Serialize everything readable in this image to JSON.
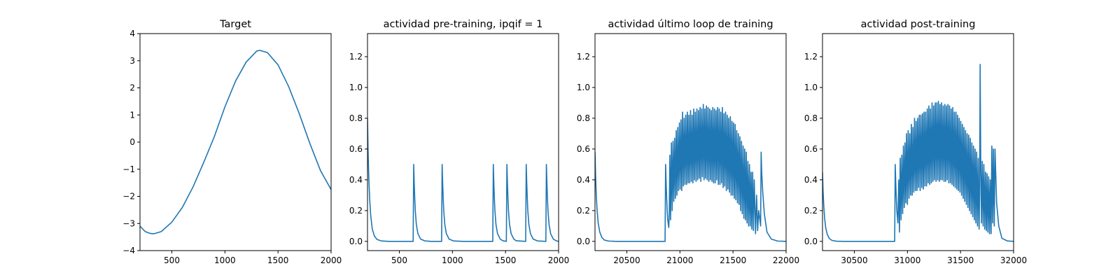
{
  "chart_data": [
    {
      "type": "line",
      "title": "Target",
      "xlabel": "",
      "ylabel": "",
      "xlim": [
        200,
        2000
      ],
      "ylim": [
        -4,
        4
      ],
      "xticks": [
        500,
        1000,
        1500,
        2000
      ],
      "xtick_labels": [
        "500",
        "1000",
        "1500",
        "2000"
      ],
      "yticks": [
        -4,
        -3,
        -2,
        -1,
        0,
        1,
        2,
        3,
        4
      ],
      "ytick_labels": [
        "−4",
        "−3",
        "−2",
        "−1",
        "0",
        "1",
        "2",
        "3",
        "4"
      ],
      "grid": false,
      "color": "#1f77b4",
      "series": [
        {
          "x": [
            200,
            250,
            300,
            330,
            400,
            500,
            600,
            700,
            800,
            900,
            1000,
            1100,
            1200,
            1300,
            1330,
            1400,
            1500,
            1600,
            1700,
            1800,
            1900,
            2000
          ],
          "y": [
            -3.1,
            -3.3,
            -3.37,
            -3.38,
            -3.3,
            -2.95,
            -2.4,
            -1.65,
            -0.75,
            0.2,
            1.3,
            2.25,
            2.95,
            3.36,
            3.38,
            3.3,
            2.85,
            2.05,
            1.05,
            -0.05,
            -1.05,
            -1.75
          ]
        }
      ]
    },
    {
      "type": "line",
      "title": "actividad pre-training, ipqif = 1",
      "xlabel": "",
      "ylabel": "",
      "xlim": [
        200,
        2000
      ],
      "ylim": [
        -0.06,
        1.35
      ],
      "xticks": [
        500,
        1000,
        1500,
        2000
      ],
      "xtick_labels": [
        "500",
        "1000",
        "1500",
        "2000"
      ],
      "yticks": [
        0.0,
        0.2,
        0.4,
        0.6,
        0.8,
        1.0,
        1.2
      ],
      "ytick_labels": [
        "0.0",
        "0.2",
        "0.4",
        "0.6",
        "0.8",
        "1.0",
        "1.2"
      ],
      "grid": false,
      "color": "#1f77b4",
      "series": [
        {
          "x": [
            200,
            205,
            212,
            220,
            230,
            245,
            265,
            290,
            330,
            400,
            500,
            630,
            635,
            640,
            645,
            650,
            660,
            675,
            700,
            740,
            800,
            898,
            903,
            908,
            913,
            918,
            928,
            943,
            968,
            1008,
            1100,
            1200,
            1380,
            1385,
            1390,
            1395,
            1400,
            1410,
            1425,
            1450,
            1475,
            1508,
            1513,
            1518,
            1523,
            1528,
            1538,
            1553,
            1578,
            1600,
            1690,
            1695,
            1700,
            1705,
            1710,
            1720,
            1735,
            1760,
            1800,
            1880,
            1885,
            1890,
            1895,
            1900,
            1910,
            1925,
            1950,
            1980,
            2000
          ],
          "y": [
            0.8,
            0.6,
            0.42,
            0.28,
            0.17,
            0.08,
            0.035,
            0.012,
            0.003,
            0.0,
            0.0,
            0.0,
            0.5,
            0.38,
            0.28,
            0.2,
            0.11,
            0.05,
            0.015,
            0.003,
            0.0,
            0.0,
            0.5,
            0.38,
            0.28,
            0.2,
            0.11,
            0.05,
            0.015,
            0.003,
            0.0,
            0.0,
            0.0,
            0.5,
            0.38,
            0.28,
            0.2,
            0.11,
            0.05,
            0.015,
            0.004,
            0.0,
            0.5,
            0.38,
            0.28,
            0.2,
            0.11,
            0.05,
            0.015,
            0.004,
            0.0,
            0.5,
            0.38,
            0.28,
            0.2,
            0.11,
            0.05,
            0.015,
            0.003,
            0.0,
            0.5,
            0.38,
            0.28,
            0.2,
            0.11,
            0.05,
            0.015,
            0.003,
            0.0
          ]
        }
      ]
    },
    {
      "type": "line",
      "title": "actividad último loop de training",
      "xlabel": "",
      "ylabel": "",
      "xlim": [
        20200,
        22000
      ],
      "ylim": [
        -0.06,
        1.35
      ],
      "xticks": [
        20500,
        21000,
        21500,
        22000
      ],
      "xtick_labels": [
        "20500",
        "21000",
        "21500",
        "22000"
      ],
      "yticks": [
        0.0,
        0.2,
        0.4,
        0.6,
        0.8,
        1.0,
        1.2
      ],
      "ytick_labels": [
        "0.0",
        "0.2",
        "0.4",
        "0.6",
        "0.8",
        "1.0",
        "1.2"
      ],
      "grid": false,
      "color": "#1f77b4",
      "series": [
        {
          "x": [
            20200,
            20205,
            20212,
            20220,
            20230,
            20245,
            20265,
            20290,
            20330,
            20400,
            20500,
            20600,
            20700,
            20860,
            20865,
            20870,
            20875,
            20880,
            20885,
            20895,
            20900,
            20905,
            20912,
            20920,
            20927,
            20935,
            20942,
            20950,
            20957,
            20965,
            20972,
            20980,
            20987,
            20995,
            21002,
            21010,
            21017,
            21025,
            21032,
            21040,
            21047,
            21055,
            21062,
            21070,
            21077,
            21085,
            21092,
            21100,
            21107,
            21115,
            21122,
            21130,
            21137,
            21145,
            21152,
            21160,
            21167,
            21175,
            21182,
            21190,
            21197,
            21205,
            21212,
            21220,
            21227,
            21235,
            21242,
            21250,
            21257,
            21265,
            21272,
            21280,
            21287,
            21295,
            21302,
            21310,
            21317,
            21325,
            21332,
            21340,
            21347,
            21355,
            21362,
            21370,
            21377,
            21385,
            21392,
            21400,
            21407,
            21415,
            21422,
            21430,
            21437,
            21445,
            21452,
            21460,
            21467,
            21475,
            21482,
            21490,
            21497,
            21505,
            21512,
            21520,
            21527,
            21535,
            21542,
            21550,
            21557,
            21565,
            21572,
            21580,
            21587,
            21595,
            21602,
            21610,
            21617,
            21625,
            21632,
            21640,
            21647,
            21655,
            21662,
            21670,
            21677,
            21685,
            21692,
            21700,
            21712,
            21722,
            21732,
            21742,
            21760,
            21765,
            21770,
            21780,
            21795,
            21820,
            21860,
            21920,
            22000
          ],
          "y": [
            0.58,
            0.44,
            0.3,
            0.2,
            0.12,
            0.06,
            0.025,
            0.008,
            0.002,
            0.0,
            0.0,
            0.0,
            0.0,
            0.0,
            0.5,
            0.38,
            0.28,
            0.2,
            0.14,
            0.09,
            0.2,
            0.56,
            0.14,
            0.64,
            0.2,
            0.65,
            0.26,
            0.67,
            0.28,
            0.72,
            0.3,
            0.74,
            0.33,
            0.77,
            0.34,
            0.79,
            0.33,
            0.84,
            0.36,
            0.8,
            0.37,
            0.82,
            0.37,
            0.84,
            0.38,
            0.82,
            0.38,
            0.85,
            0.39,
            0.82,
            0.38,
            0.86,
            0.4,
            0.84,
            0.39,
            0.86,
            0.4,
            0.85,
            0.41,
            0.87,
            0.39,
            0.86,
            0.42,
            0.89,
            0.4,
            0.86,
            0.41,
            0.88,
            0.4,
            0.87,
            0.39,
            0.86,
            0.4,
            0.85,
            0.39,
            0.87,
            0.38,
            0.86,
            0.38,
            0.85,
            0.4,
            0.87,
            0.37,
            0.86,
            0.37,
            0.84,
            0.38,
            0.87,
            0.35,
            0.83,
            0.36,
            0.84,
            0.33,
            0.82,
            0.34,
            0.8,
            0.32,
            0.81,
            0.3,
            0.78,
            0.3,
            0.77,
            0.28,
            0.76,
            0.27,
            0.72,
            0.25,
            0.7,
            0.24,
            0.68,
            0.2,
            0.65,
            0.18,
            0.62,
            0.15,
            0.6,
            0.14,
            0.58,
            0.12,
            0.52,
            0.1,
            0.5,
            0.1,
            0.45,
            0.08,
            0.45,
            0.07,
            0.4,
            0.05,
            0.3,
            0.07,
            0.2,
            0.1,
            0.58,
            0.45,
            0.32,
            0.18,
            0.06,
            0.015,
            0.002,
            0.0
          ]
        }
      ]
    },
    {
      "type": "line",
      "title": "actividad post-training",
      "xlabel": "",
      "ylabel": "",
      "xlim": [
        30200,
        32000
      ],
      "ylim": [
        -0.06,
        1.35
      ],
      "xticks": [
        30500,
        31000,
        31500,
        32000
      ],
      "xtick_labels": [
        "30500",
        "31000",
        "31500",
        "32000"
      ],
      "yticks": [
        0.0,
        0.2,
        0.4,
        0.6,
        0.8,
        1.0,
        1.2
      ],
      "ytick_labels": [
        "0.0",
        "0.2",
        "0.4",
        "0.6",
        "0.8",
        "1.0",
        "1.2"
      ],
      "grid": false,
      "color": "#1f77b4",
      "series": [
        {
          "x": [
            30200,
            30205,
            30212,
            30220,
            30230,
            30245,
            30265,
            30290,
            30330,
            30400,
            30500,
            30600,
            30700,
            30880,
            30885,
            30890,
            30895,
            30900,
            30910,
            30918,
            30925,
            30932,
            30940,
            30947,
            30955,
            30962,
            30970,
            30977,
            30985,
            30992,
            31000,
            31007,
            31015,
            31022,
            31030,
            31037,
            31045,
            31052,
            31060,
            31067,
            31075,
            31082,
            31090,
            31097,
            31105,
            31112,
            31120,
            31127,
            31135,
            31142,
            31150,
            31157,
            31165,
            31172,
            31180,
            31187,
            31195,
            31202,
            31210,
            31217,
            31225,
            31232,
            31240,
            31247,
            31255,
            31262,
            31270,
            31277,
            31285,
            31292,
            31300,
            31307,
            31315,
            31322,
            31330,
            31337,
            31345,
            31352,
            31360,
            31367,
            31375,
            31382,
            31390,
            31397,
            31405,
            31412,
            31420,
            31427,
            31435,
            31442,
            31450,
            31457,
            31465,
            31472,
            31480,
            31487,
            31495,
            31502,
            31510,
            31517,
            31525,
            31532,
            31540,
            31547,
            31555,
            31562,
            31570,
            31577,
            31585,
            31592,
            31600,
            31607,
            31615,
            31622,
            31630,
            31637,
            31645,
            31652,
            31660,
            31667,
            31675,
            31680,
            31685,
            31690,
            31698,
            31705,
            31713,
            31720,
            31728,
            31735,
            31743,
            31750,
            31758,
            31765,
            31773,
            31780,
            31788,
            31795,
            31803,
            31810,
            31818,
            31825,
            31840,
            31860,
            31890,
            31940,
            32000
          ],
          "y": [
            0.45,
            0.33,
            0.23,
            0.15,
            0.09,
            0.045,
            0.018,
            0.006,
            0.001,
            0.0,
            0.0,
            0.0,
            0.0,
            0.0,
            0.5,
            0.38,
            0.28,
            0.2,
            0.12,
            0.4,
            0.06,
            0.54,
            0.14,
            0.56,
            0.18,
            0.62,
            0.22,
            0.64,
            0.25,
            0.7,
            0.24,
            0.72,
            0.28,
            0.7,
            0.3,
            0.76,
            0.3,
            0.74,
            0.32,
            0.8,
            0.33,
            0.78,
            0.33,
            0.8,
            0.35,
            0.82,
            0.33,
            0.82,
            0.35,
            0.83,
            0.34,
            0.84,
            0.36,
            0.84,
            0.36,
            0.86,
            0.38,
            0.88,
            0.37,
            0.86,
            0.38,
            0.9,
            0.39,
            0.88,
            0.4,
            0.9,
            0.39,
            0.9,
            0.4,
            0.91,
            0.39,
            0.89,
            0.4,
            0.9,
            0.4,
            0.88,
            0.39,
            0.89,
            0.39,
            0.88,
            0.4,
            0.89,
            0.38,
            0.88,
            0.38,
            0.86,
            0.37,
            0.87,
            0.36,
            0.84,
            0.35,
            0.84,
            0.34,
            0.82,
            0.33,
            0.8,
            0.32,
            0.78,
            0.3,
            0.76,
            0.28,
            0.74,
            0.26,
            0.72,
            0.24,
            0.7,
            0.22,
            0.69,
            0.2,
            0.67,
            0.18,
            0.64,
            0.16,
            0.62,
            0.14,
            0.6,
            0.12,
            0.58,
            0.1,
            0.54,
            0.08,
            0.3,
            1.15,
            0.55,
            0.12,
            0.52,
            0.1,
            0.5,
            0.08,
            0.45,
            0.07,
            0.44,
            0.06,
            0.42,
            0.05,
            0.4,
            0.05,
            0.62,
            0.12,
            0.6,
            0.1,
            0.6,
            0.25,
            0.1,
            0.02,
            0.003,
            0.0
          ]
        }
      ]
    }
  ]
}
